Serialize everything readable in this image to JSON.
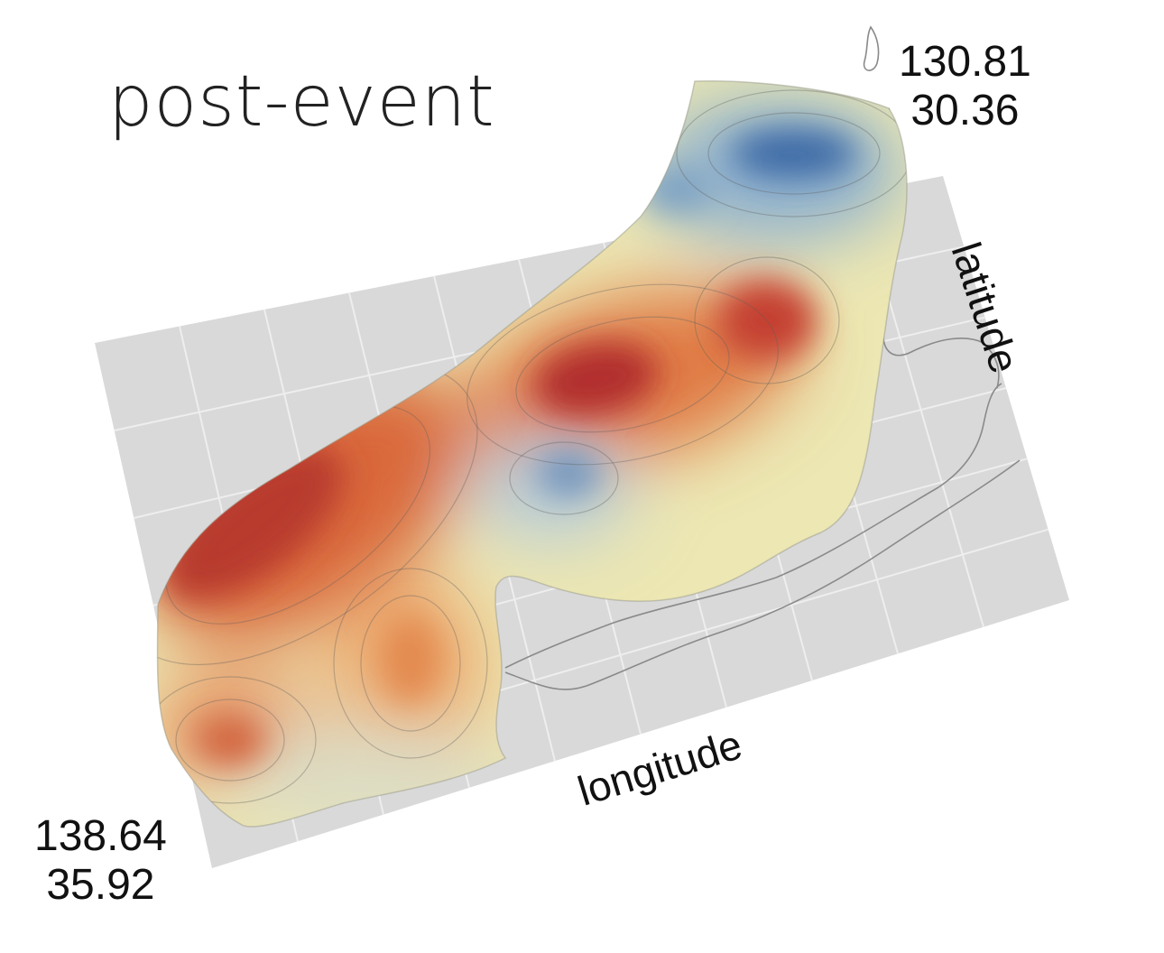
{
  "title": "post-event",
  "corners": {
    "ne": {
      "longitude": "130.81",
      "latitude": "30.36"
    },
    "sw": {
      "longitude": "138.64",
      "latitude": "35.92"
    }
  },
  "axes": {
    "x_label": "longitude",
    "y_label": "latitude"
  },
  "colors": {
    "plane": "#d9d9d9",
    "grid": "#eeeeee",
    "coastline": "#8a8a8a",
    "cool_deep": "#3e6aa6",
    "cool": "#9fbcd4",
    "neutral": "#ece7b3",
    "warm": "#e0894e",
    "hot": "#b3282a"
  }
}
